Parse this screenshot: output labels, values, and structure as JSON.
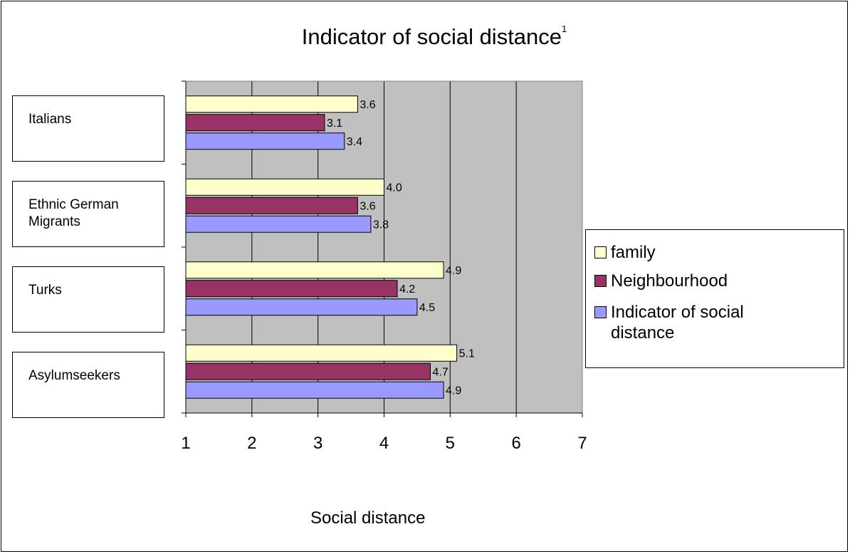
{
  "chart_data": {
    "type": "bar",
    "orientation": "horizontal",
    "title": "Indicator of social distance",
    "title_superscript": "1",
    "xlabel": "Social distance",
    "ylabel": "",
    "xlim": [
      1,
      7
    ],
    "xticks": [
      "1",
      "2",
      "3",
      "4",
      "5",
      "6",
      "7"
    ],
    "categories": [
      "Italians",
      "Ethnic German Migrants",
      "Turks",
      "Asylumseekers"
    ],
    "category_lines": [
      [
        "Italians"
      ],
      [
        "Ethnic German",
        "Migrants"
      ],
      [
        "Turks"
      ],
      [
        "Asylumseekers"
      ]
    ],
    "series": [
      {
        "name": "family",
        "color": "#FFFFCC",
        "values": [
          3.6,
          4.0,
          4.9,
          5.1
        ]
      },
      {
        "name": "Neighbourhood",
        "color": "#993366",
        "values": [
          3.1,
          3.6,
          4.2,
          4.7
        ]
      },
      {
        "name": "Indicator of social distance",
        "color": "#9999FF",
        "values": [
          3.4,
          3.8,
          4.5,
          4.9
        ]
      }
    ],
    "data_labels": [
      [
        "3.6",
        "4.0",
        "4.9",
        "5.1"
      ],
      [
        "3.1",
        "3.6",
        "4.2",
        "4.7"
      ],
      [
        "3.4",
        "3.8",
        "4.5",
        "4.9"
      ]
    ],
    "legend_position": "right",
    "legend_lines": [
      [
        "family"
      ],
      [
        "Neighbourhood"
      ],
      [
        "Indicator of social",
        "distance"
      ]
    ],
    "grid": true,
    "plot_background": "#C0C0C0"
  }
}
